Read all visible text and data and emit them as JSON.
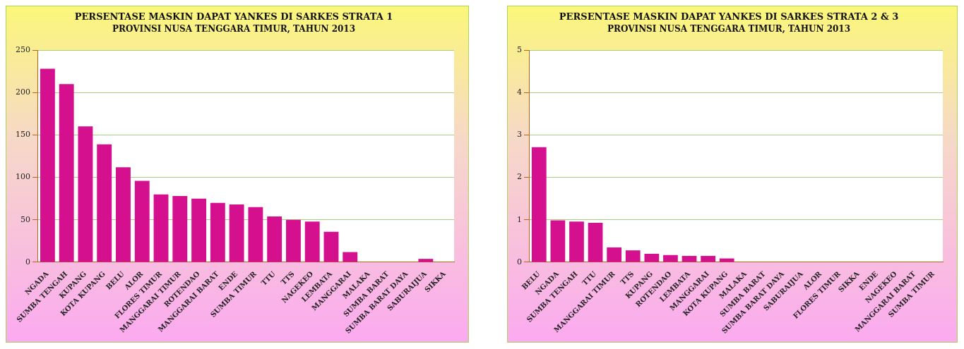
{
  "chart_data": [
    {
      "type": "bar",
      "title": "PERSENTASE MASKIN DAPAT YANKES DI SARKES STRATA 1",
      "subtitle": "PROVINSI NUSA TENGGARA TIMUR, TAHUN 2013",
      "categories": [
        "NGADA",
        "SUMBA TENGAH",
        "KUPANG",
        "KOTA KUPANG",
        "BELU",
        "ALOR",
        "FLORES TIMUR",
        "MANGGARAI TIMUR",
        "ROTENDAO",
        "MANGGARAI BARAT",
        "ENDE",
        "SUMBA TIMUR",
        "TTU",
        "TTS",
        "NAGEKEO",
        "LEMBATA",
        "MANGGARAI",
        "MALAKA",
        "SUMBA BARAT",
        "SUMBA BARAT DAYA",
        "SABURAIJUA",
        "SIKKA"
      ],
      "values": [
        228,
        210,
        160,
        139,
        112,
        96,
        80,
        78,
        75,
        70,
        68,
        65,
        54,
        50,
        48,
        36,
        12,
        0,
        0,
        0,
        4,
        0
      ],
      "color": "#d4108f",
      "ylim": [
        0,
        250
      ],
      "yticks": [
        0,
        50,
        100,
        150,
        200,
        250
      ],
      "grid": "y"
    },
    {
      "type": "bar",
      "title": "PERSENTASE MASKIN DAPAT YANKES DI SARKES STRATA 2 & 3",
      "subtitle": "PROVINSI NUSA TENGGARA TIMUR, TAHUN 2013",
      "categories": [
        "BELU",
        "NGADA",
        "SUMBA TENGAH",
        "TTU",
        "MANGGARAI TIMUR",
        "TTS",
        "KUPANG",
        "ROTENDAO",
        "LEMBATA",
        "MANGGARAI",
        "KOTA KUPANG",
        "MALAKA",
        "SUMBA BARAT",
        "SUMBA BARAT DAYA",
        "SABURAIJUA",
        "ALOR",
        "FLORES TIMUR",
        "SIKKA",
        "ENDE",
        "NAGEKEO",
        "MANGGARAI BARAT",
        "SUMBA TIMUR"
      ],
      "values": [
        2.71,
        0.99,
        0.96,
        0.93,
        0.35,
        0.28,
        0.2,
        0.17,
        0.15,
        0.15,
        0.09,
        0,
        0,
        0,
        0,
        0,
        0,
        0,
        0,
        0,
        0,
        0
      ],
      "color": "#d4108f",
      "ylim": [
        0,
        5
      ],
      "yticks": [
        0,
        1,
        2,
        3,
        4,
        5
      ],
      "grid": "y"
    }
  ]
}
